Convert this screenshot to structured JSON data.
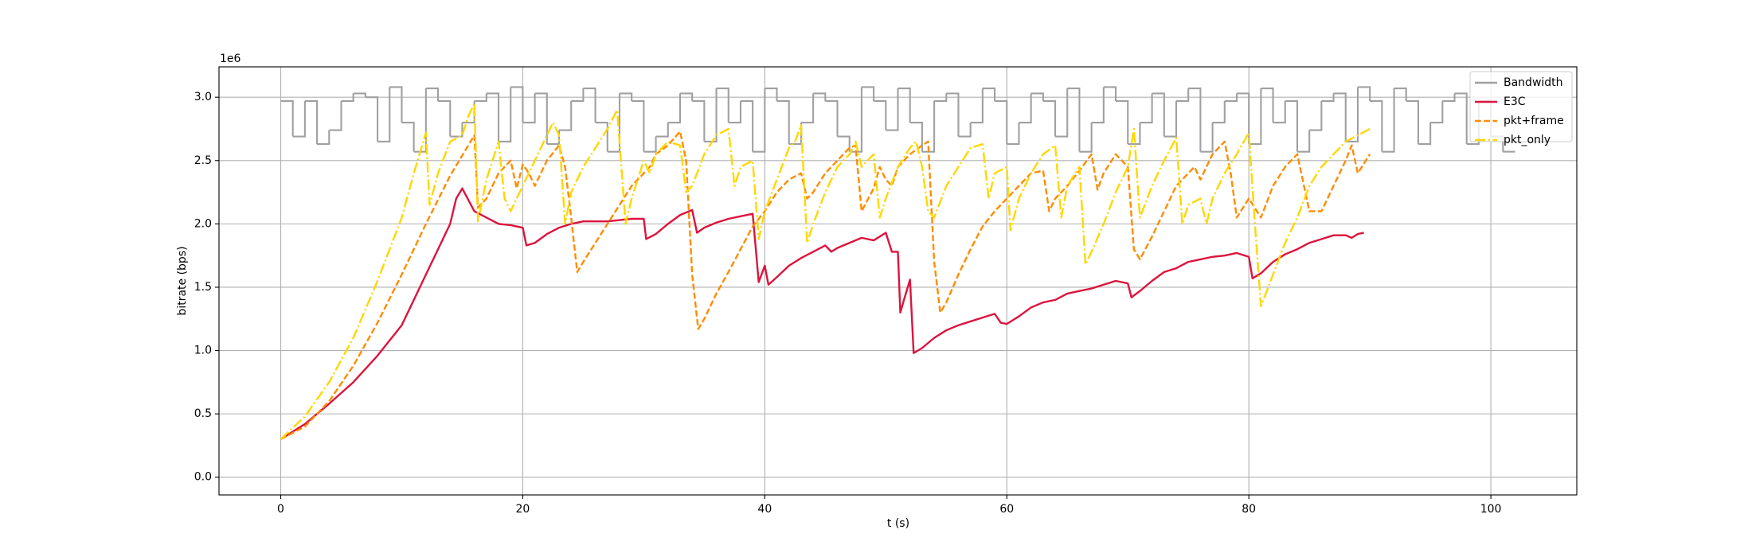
{
  "chart_data": {
    "type": "line",
    "xlabel": "t (s)",
    "ylabel": "bitrate (bps)",
    "y_offset_label": "1e6",
    "xlim": [
      -5.1,
      107.1
    ],
    "ylim": [
      -0.14,
      3.24
    ],
    "xticks": [
      0,
      20,
      40,
      60,
      80,
      100
    ],
    "yticks": [
      {
        "value": 0,
        "label": "0.0"
      },
      0.5,
      {
        "value": 1,
        "label": "1.0"
      },
      1.5,
      {
        "value": 2,
        "label": "2.0"
      },
      2.5,
      {
        "value": 3,
        "label": "3.0"
      }
    ],
    "grid": true,
    "legend": "upper right",
    "series": [
      {
        "name": "Bandwidth",
        "color": "#a0a0a0",
        "linestyle": "solid",
        "drawstyle": "steps-post",
        "x": [
          0,
          1,
          2,
          3,
          4,
          5,
          6,
          7,
          8,
          9,
          10,
          11,
          12,
          13,
          14,
          15,
          16,
          17,
          18,
          19,
          20,
          21,
          22,
          23,
          24,
          25,
          26,
          27,
          28,
          29,
          30,
          31,
          32,
          33,
          34,
          35,
          36,
          37,
          38,
          39,
          40,
          41,
          42,
          43,
          44,
          45,
          46,
          47,
          48,
          49,
          50,
          51,
          52,
          53,
          54,
          55,
          56,
          57,
          58,
          59,
          60,
          61,
          62,
          63,
          64,
          65,
          66,
          67,
          68,
          69,
          70,
          71,
          72,
          73,
          74,
          75,
          76,
          77,
          78,
          79,
          80,
          81,
          82,
          83,
          84,
          85,
          86,
          87,
          88,
          89,
          90,
          91,
          92,
          93,
          94,
          95,
          96,
          97,
          98,
          99,
          100,
          101
        ],
        "values": [
          2.97,
          2.69,
          2.97,
          2.63,
          2.74,
          2.97,
          3.03,
          3.0,
          2.65,
          3.08,
          2.8,
          2.57,
          3.07,
          2.97,
          2.69,
          2.8,
          2.97,
          3.03,
          2.65,
          3.08,
          2.8,
          3.03,
          2.63,
          2.74,
          2.97,
          3.07,
          2.8,
          2.57,
          3.03,
          2.97,
          2.57,
          2.69,
          2.8,
          3.03,
          2.97,
          2.65,
          3.07,
          2.8,
          2.97,
          2.57,
          3.07,
          2.97,
          2.63,
          2.8,
          3.03,
          2.97,
          2.69,
          2.57,
          3.08,
          2.97,
          2.74,
          3.07,
          2.8,
          2.57,
          2.97,
          3.03,
          2.69,
          2.8,
          3.07,
          2.97,
          2.63,
          2.8,
          3.03,
          2.97,
          2.69,
          3.07,
          2.57,
          2.8,
          3.08,
          2.97,
          2.63,
          2.8,
          3.03,
          2.69,
          2.97,
          3.07,
          2.57,
          2.8,
          2.97,
          3.03,
          2.63,
          3.07,
          2.8,
          2.97,
          2.57,
          2.74,
          2.97,
          3.03,
          2.65,
          3.08,
          2.97,
          2.57,
          3.07,
          2.97,
          2.63,
          2.8,
          2.97,
          3.03,
          2.63,
          2.97,
          2.69,
          2.57
        ]
      },
      {
        "name": "E3C",
        "color": "#dc143c",
        "linestyle": "solid",
        "x": [
          0,
          2,
          4,
          6,
          8,
          10,
          11,
          12,
          13,
          14,
          14.5,
          15,
          16,
          17,
          18,
          19,
          20,
          20.3,
          21,
          22,
          23,
          24,
          25,
          26,
          27,
          28,
          29,
          30,
          30.2,
          31,
          32,
          33,
          34,
          34.4,
          35,
          36,
          37,
          38,
          39,
          39.5,
          40,
          40.3,
          41,
          42,
          43,
          44,
          45,
          45.5,
          46,
          47,
          48,
          49,
          50,
          50.5,
          51,
          51.2,
          51.5,
          52,
          52.3,
          53,
          54,
          55,
          56,
          57,
          58,
          59,
          59.5,
          60,
          61,
          62,
          63,
          64,
          65,
          66,
          67,
          68,
          69,
          70,
          70.3,
          71,
          72,
          73,
          74,
          75,
          76,
          77,
          78,
          79,
          80,
          80.3,
          81,
          82,
          83,
          84,
          85,
          86,
          87,
          88,
          88.5,
          89,
          89.5
        ],
        "values": [
          0.3,
          0.42,
          0.58,
          0.75,
          0.96,
          1.2,
          1.4,
          1.6,
          1.8,
          2.0,
          2.2,
          2.28,
          2.1,
          2.05,
          2.0,
          1.99,
          1.97,
          1.83,
          1.85,
          1.92,
          1.97,
          2.0,
          2.02,
          2.02,
          2.02,
          2.03,
          2.04,
          2.04,
          1.88,
          1.92,
          2.0,
          2.07,
          2.11,
          1.93,
          1.97,
          2.01,
          2.04,
          2.06,
          2.08,
          1.54,
          1.67,
          1.52,
          1.58,
          1.67,
          1.73,
          1.78,
          1.83,
          1.78,
          1.81,
          1.85,
          1.89,
          1.87,
          1.93,
          1.78,
          1.78,
          1.3,
          1.4,
          1.56,
          0.98,
          1.02,
          1.1,
          1.16,
          1.2,
          1.23,
          1.26,
          1.29,
          1.22,
          1.21,
          1.27,
          1.34,
          1.38,
          1.4,
          1.45,
          1.47,
          1.49,
          1.52,
          1.55,
          1.53,
          1.42,
          1.47,
          1.55,
          1.62,
          1.65,
          1.7,
          1.72,
          1.74,
          1.75,
          1.77,
          1.74,
          1.57,
          1.61,
          1.7,
          1.76,
          1.8,
          1.85,
          1.88,
          1.91,
          1.91,
          1.89,
          1.92,
          1.93
        ]
      },
      {
        "name": "pkt+frame",
        "color": "#ff8c00",
        "linestyle": "dashed",
        "x": [
          0,
          2,
          4,
          6,
          8,
          10,
          12,
          14,
          16,
          16.3,
          17,
          18,
          19,
          19.5,
          20,
          20.5,
          21,
          22,
          23,
          23.5,
          24,
          24.5,
          25,
          26,
          27,
          28,
          29,
          30,
          30.5,
          31,
          32,
          33,
          33.5,
          34,
          34.5,
          35,
          36,
          37,
          38,
          39,
          40,
          41,
          42,
          43,
          43.5,
          44,
          45,
          46,
          47,
          47.5,
          48,
          49,
          49.5,
          50,
          50.5,
          51,
          52,
          53,
          53.5,
          54,
          54.5,
          55,
          56,
          57,
          58,
          59,
          60,
          61,
          62,
          63,
          63.5,
          64,
          65,
          66,
          67,
          67.5,
          68,
          69,
          70,
          70.5,
          71,
          72,
          73,
          74,
          75,
          75.5,
          76,
          77,
          78,
          78.5,
          79,
          80,
          81,
          82,
          83,
          84,
          85,
          86,
          87,
          88,
          88.5,
          89,
          90
        ],
        "values": [
          0.3,
          0.4,
          0.6,
          0.88,
          1.22,
          1.6,
          2.0,
          2.38,
          2.7,
          2.13,
          2.2,
          2.4,
          2.5,
          2.28,
          2.47,
          2.4,
          2.3,
          2.5,
          2.62,
          2.45,
          2.05,
          1.62,
          1.7,
          1.85,
          2.0,
          2.15,
          2.3,
          2.4,
          2.45,
          2.55,
          2.62,
          2.73,
          2.5,
          1.6,
          1.17,
          1.25,
          1.45,
          1.62,
          1.8,
          1.98,
          2.1,
          2.25,
          2.35,
          2.4,
          2.2,
          2.25,
          2.4,
          2.5,
          2.6,
          2.62,
          2.1,
          2.28,
          2.45,
          2.35,
          2.3,
          2.45,
          2.55,
          2.62,
          2.65,
          1.7,
          1.3,
          1.38,
          1.6,
          1.8,
          1.98,
          2.1,
          2.2,
          2.3,
          2.4,
          2.42,
          2.1,
          2.2,
          2.3,
          2.42,
          2.55,
          2.27,
          2.4,
          2.55,
          2.45,
          1.8,
          1.72,
          1.9,
          2.1,
          2.3,
          2.4,
          2.45,
          2.35,
          2.55,
          2.65,
          2.4,
          2.05,
          2.2,
          2.05,
          2.3,
          2.45,
          2.55,
          2.1,
          2.1,
          2.3,
          2.5,
          2.62,
          2.4,
          2.55
        ]
      },
      {
        "name": "pkt_only",
        "color": "#ffd700",
        "linestyle": "dashdot",
        "x": [
          0,
          2,
          4,
          6,
          8,
          10,
          11,
          12,
          12.3,
          13,
          14,
          15,
          15.5,
          16,
          16.3,
          17,
          18,
          18.5,
          19,
          20,
          21,
          22,
          22.5,
          23,
          23.5,
          24,
          25,
          26,
          27,
          27.8,
          28.5,
          29,
          30,
          30.5,
          31,
          32,
          33,
          33.5,
          34,
          35,
          36,
          37,
          37.5,
          38,
          39,
          39.5,
          40,
          41,
          42,
          42.5,
          43,
          43.5,
          44,
          45,
          46,
          47,
          47.5,
          48,
          49,
          49.5,
          50,
          51,
          52,
          52.5,
          53,
          53.5,
          54,
          55,
          56,
          57,
          58,
          58.5,
          59,
          60,
          60.3,
          61,
          62,
          63,
          64,
          64.5,
          65,
          66,
          66.5,
          67,
          68,
          69,
          70,
          70.5,
          71,
          72,
          73,
          74,
          74.5,
          75,
          76,
          76.5,
          77,
          78,
          79,
          80,
          80.5,
          81,
          82,
          83,
          84,
          85,
          86,
          87,
          88,
          89,
          90
        ],
        "values": [
          0.3,
          0.48,
          0.75,
          1.1,
          1.55,
          2.05,
          2.4,
          2.72,
          2.15,
          2.4,
          2.65,
          2.7,
          2.85,
          2.95,
          2.02,
          2.35,
          2.65,
          2.2,
          2.1,
          2.3,
          2.5,
          2.7,
          2.8,
          2.7,
          2.0,
          2.25,
          2.45,
          2.6,
          2.75,
          2.9,
          2.0,
          2.2,
          2.5,
          2.4,
          2.55,
          2.65,
          2.62,
          2.25,
          2.3,
          2.55,
          2.7,
          2.75,
          2.3,
          2.45,
          2.5,
          1.88,
          2.1,
          2.35,
          2.6,
          2.65,
          2.78,
          1.85,
          2.0,
          2.25,
          2.45,
          2.55,
          2.65,
          2.45,
          2.55,
          2.05,
          2.2,
          2.45,
          2.6,
          2.65,
          2.45,
          2.1,
          2.05,
          2.3,
          2.45,
          2.6,
          2.63,
          2.2,
          2.4,
          2.45,
          1.95,
          2.2,
          2.4,
          2.55,
          2.62,
          2.05,
          2.3,
          2.45,
          1.68,
          1.78,
          2.0,
          2.25,
          2.45,
          2.75,
          2.05,
          2.3,
          2.5,
          2.68,
          2.0,
          2.15,
          2.2,
          2.0,
          2.2,
          2.4,
          2.55,
          2.72,
          2.0,
          1.35,
          1.6,
          1.85,
          2.05,
          2.3,
          2.45,
          2.55,
          2.65,
          2.7,
          2.75
        ]
      }
    ]
  }
}
